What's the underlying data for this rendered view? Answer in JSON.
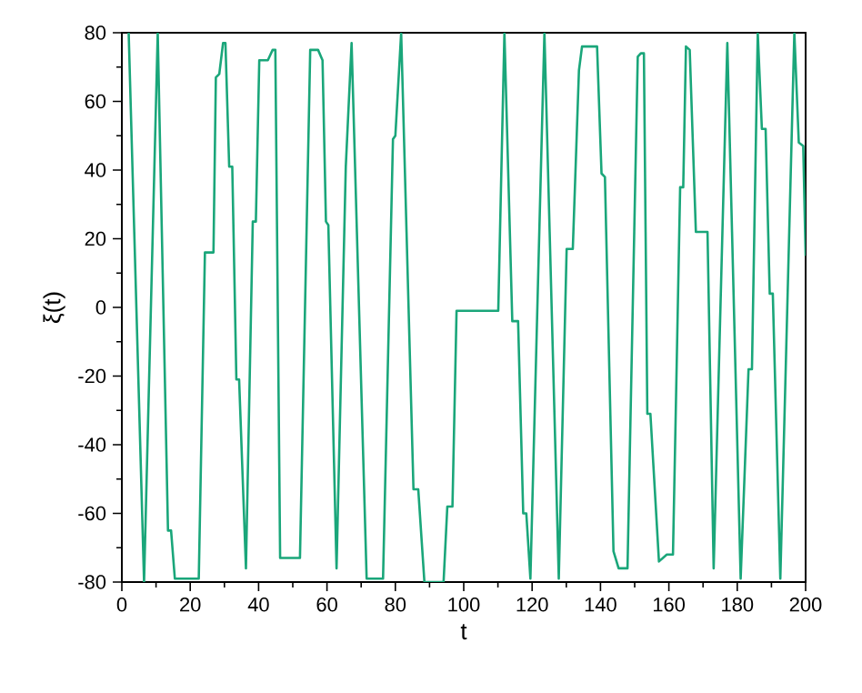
{
  "chart_data": {
    "type": "line",
    "xlabel": "t",
    "ylabel": "ξ(t)",
    "xlim": [
      0,
      200
    ],
    "ylim": [
      -80,
      80
    ],
    "xticks": [
      0,
      20,
      40,
      60,
      80,
      100,
      120,
      140,
      160,
      180,
      200
    ],
    "yticks": [
      -80,
      -60,
      -40,
      -20,
      0,
      20,
      40,
      60,
      80
    ],
    "marker": "none",
    "line_style": "solid",
    "series": [
      {
        "color": "#1aa67a",
        "x": [
          2,
          6.5,
          10.5,
          13.5,
          14.4,
          15.5,
          22.5,
          24.3,
          26.8,
          27.5,
          28.5,
          29.6,
          30.3,
          31.4,
          32.3,
          33.5,
          34.3,
          36.3,
          38.3,
          39.2,
          40.2,
          42.7,
          44.1,
          44.9,
          46.3,
          52.1,
          55.1,
          57.4,
          58.7,
          59.7,
          60.4,
          62.8,
          65.5,
          67.2,
          71.6,
          76.4,
          79.3,
          80,
          81.7,
          85.3,
          86.7,
          88.5,
          94.1,
          95.2,
          96.7,
          97.9,
          110.1,
          111.9,
          114.2,
          115.9,
          117.4,
          118.3,
          119.5,
          123.6,
          127.8,
          130.1,
          131.9,
          133.7,
          134.6,
          139,
          140.3,
          141.3,
          143.8,
          145.3,
          147.9,
          150.9,
          151.8,
          152.7,
          153.7,
          154.6,
          157.1,
          159.4,
          161.2,
          163.3,
          164.2,
          165,
          166.1,
          167.9,
          171.3,
          173.1,
          177.1,
          181,
          183.3,
          184.3,
          186,
          187.2,
          188.3,
          189.5,
          190.4,
          192.6,
          196.7,
          198,
          199.3,
          200
        ],
        "values": [
          80,
          -80,
          80,
          -65,
          -65,
          -79,
          -79,
          16,
          16,
          67,
          68,
          77,
          77,
          41,
          41,
          -21,
          -21,
          -76,
          25,
          25,
          72,
          72,
          75,
          75,
          -73,
          -73,
          75,
          75,
          72,
          25,
          24,
          -76,
          41,
          77,
          -79,
          -79,
          49,
          50,
          80,
          -53,
          -53,
          -80,
          -80,
          -58,
          -58,
          -1,
          -1,
          80,
          -4,
          -4,
          -60,
          -60,
          -79,
          80,
          -79,
          17,
          17,
          69,
          76,
          76,
          39,
          38,
          -71,
          -76,
          -76,
          73,
          74,
          74,
          -31,
          -31,
          -74,
          -72,
          -72,
          35,
          35,
          76,
          75,
          22,
          22,
          -76,
          77,
          -79,
          -18,
          -18,
          80,
          52,
          52,
          4,
          4,
          -79,
          80,
          48,
          47,
          15
        ]
      }
    ]
  }
}
